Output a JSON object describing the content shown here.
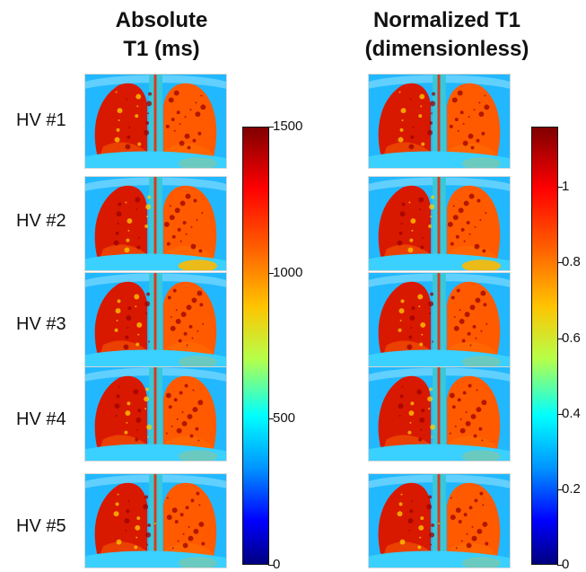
{
  "titles": {
    "left": "Absolute\nT1 (ms)",
    "right": "Normalized T1\n(dimensionless)"
  },
  "subjects": [
    "HV #1",
    "HV #2",
    "HV #3",
    "HV #4",
    "HV #5"
  ],
  "colorbars": {
    "absolute": {
      "ticks": [
        "1500",
        "1000",
        "500",
        "0"
      ],
      "max": 1500,
      "min": 0
    },
    "normalized": {
      "ticks": [
        "1",
        "0.8",
        "0.6",
        "0.4",
        "0.2",
        "0"
      ],
      "max": 1.16,
      "min": 0
    }
  },
  "colors": {
    "background": "#21b8ff",
    "lung_dark": "#d91800",
    "lung_light": "#ff5a00",
    "mediastinum": "#38c8d8",
    "high_signal": "#ffb800"
  },
  "images": [
    {
      "panel": "absolute",
      "subject": "HV #1",
      "icon": "chest-mri"
    },
    {
      "panel": "absolute",
      "subject": "HV #2",
      "icon": "chest-mri"
    },
    {
      "panel": "absolute",
      "subject": "HV #3",
      "icon": "chest-mri"
    },
    {
      "panel": "absolute",
      "subject": "HV #4",
      "icon": "chest-mri"
    },
    {
      "panel": "absolute",
      "subject": "HV #5",
      "icon": "chest-mri"
    },
    {
      "panel": "normalized",
      "subject": "HV #1",
      "icon": "chest-mri"
    },
    {
      "panel": "normalized",
      "subject": "HV #2",
      "icon": "chest-mri"
    },
    {
      "panel": "normalized",
      "subject": "HV #3",
      "icon": "chest-mri"
    },
    {
      "panel": "normalized",
      "subject": "HV #4",
      "icon": "chest-mri"
    },
    {
      "panel": "normalized",
      "subject": "HV #5",
      "icon": "chest-mri"
    }
  ]
}
